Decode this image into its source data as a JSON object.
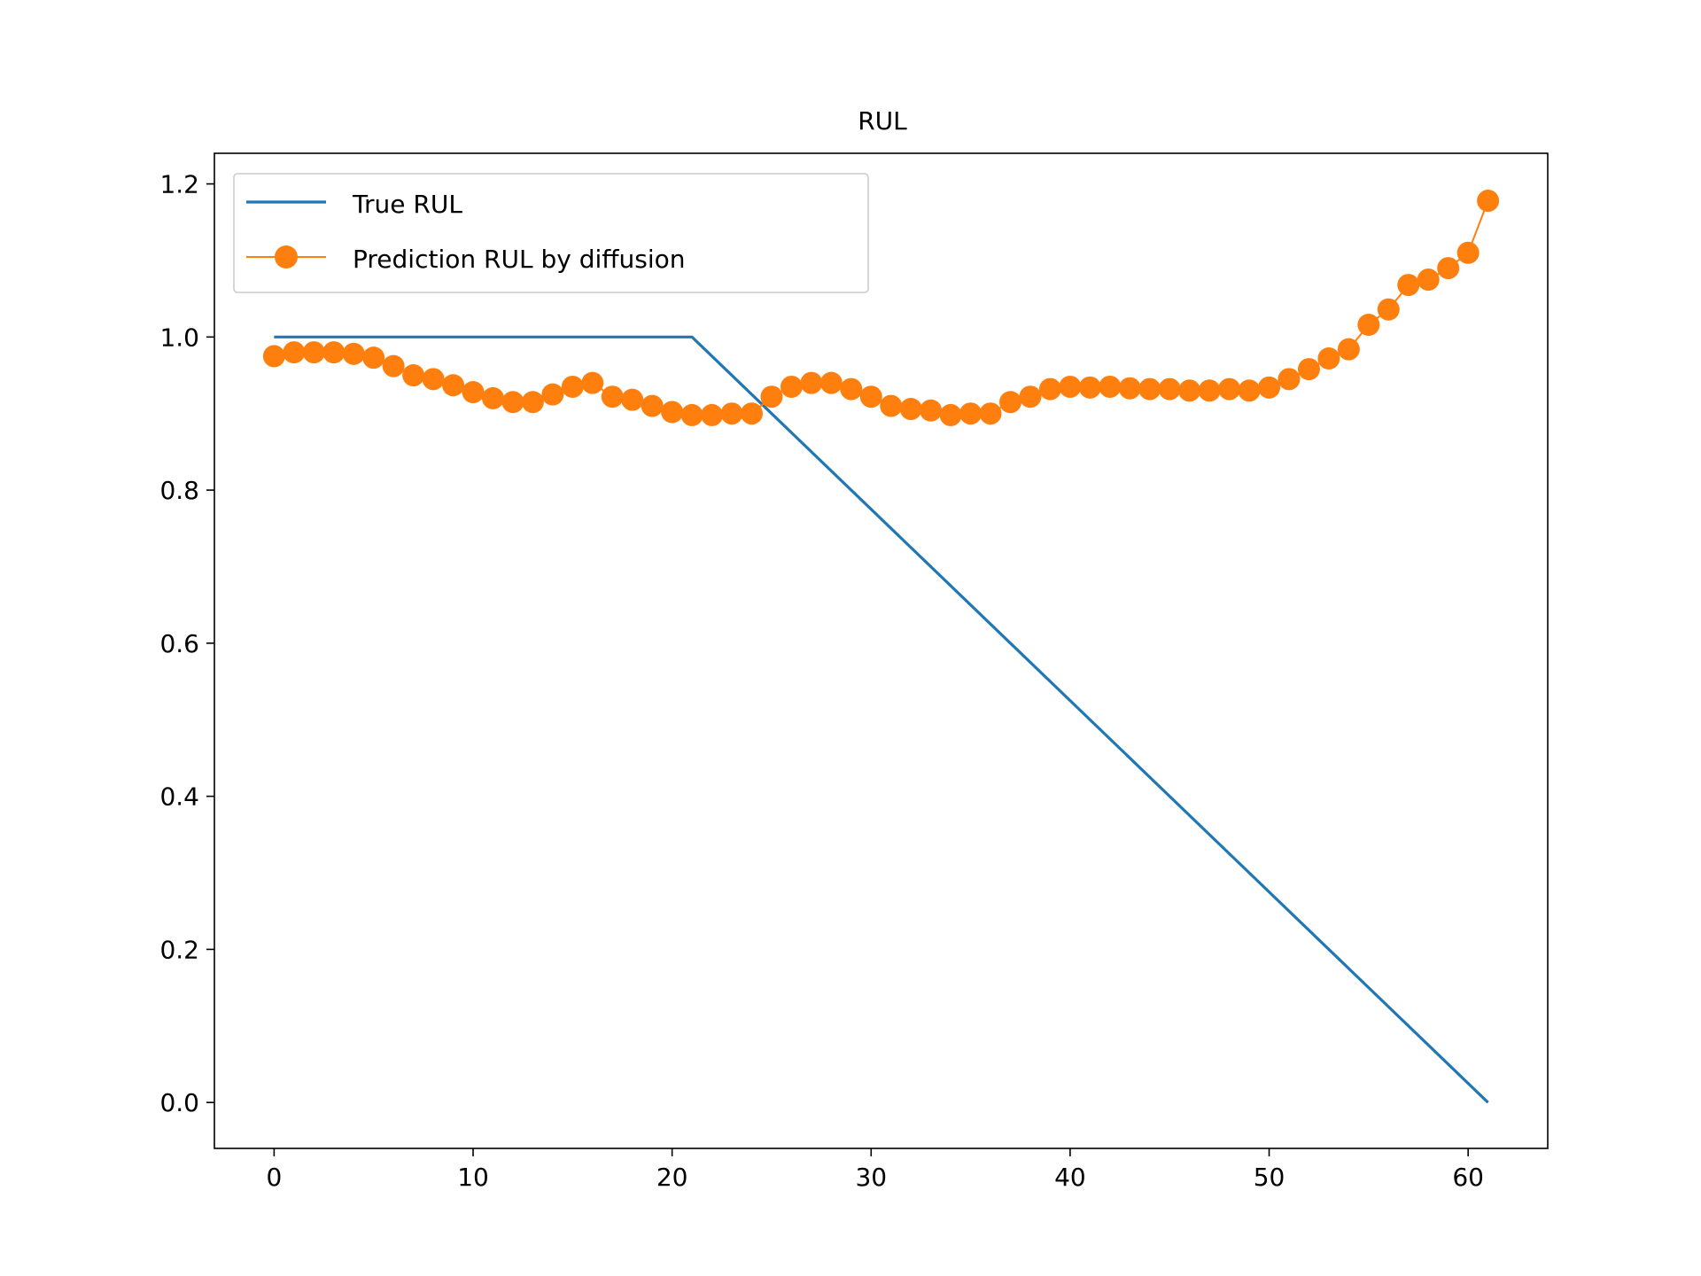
{
  "chart_data": {
    "type": "line",
    "title": "RUL",
    "xlabel": "",
    "ylabel": "",
    "xlim": [
      -3,
      64
    ],
    "ylim": [
      -0.06,
      1.24
    ],
    "xticks": [
      0,
      10,
      20,
      30,
      40,
      50,
      60
    ],
    "xtick_labels": [
      "0",
      "10",
      "20",
      "30",
      "40",
      "50",
      "60"
    ],
    "yticks": [
      0.0,
      0.2,
      0.4,
      0.6,
      0.8,
      1.0,
      1.2
    ],
    "ytick_labels": [
      "0.0",
      "0.2",
      "0.4",
      "0.6",
      "0.8",
      "1.0",
      "1.2"
    ],
    "grid": false,
    "legend_position": "upper-left",
    "series": [
      {
        "name": "True RUL",
        "color": "#1f77b4",
        "marker": "none",
        "x": [
          0,
          21,
          61
        ],
        "y": [
          1.0,
          1.0,
          0.0
        ]
      },
      {
        "name": "Prediction RUL by diffusion",
        "color": "#ff7f0e",
        "marker": "circle",
        "x": [
          0,
          1,
          2,
          3,
          4,
          5,
          6,
          7,
          8,
          9,
          10,
          11,
          12,
          13,
          14,
          15,
          16,
          17,
          18,
          19,
          20,
          21,
          22,
          23,
          24,
          25,
          26,
          27,
          28,
          29,
          30,
          31,
          32,
          33,
          34,
          35,
          36,
          37,
          38,
          39,
          40,
          41,
          42,
          43,
          44,
          45,
          46,
          47,
          48,
          49,
          50,
          51,
          52,
          53,
          54,
          55,
          56,
          57,
          58,
          59,
          60,
          61
        ],
        "y": [
          0.975,
          0.98,
          0.98,
          0.98,
          0.978,
          0.973,
          0.962,
          0.95,
          0.945,
          0.937,
          0.928,
          0.92,
          0.915,
          0.915,
          0.925,
          0.935,
          0.94,
          0.922,
          0.918,
          0.91,
          0.902,
          0.898,
          0.898,
          0.9,
          0.9,
          0.922,
          0.935,
          0.94,
          0.94,
          0.932,
          0.922,
          0.91,
          0.906,
          0.904,
          0.898,
          0.9,
          0.9,
          0.915,
          0.922,
          0.932,
          0.935,
          0.934,
          0.935,
          0.933,
          0.932,
          0.932,
          0.93,
          0.93,
          0.932,
          0.93,
          0.934,
          0.945,
          0.958,
          0.972,
          0.984,
          1.016,
          1.036,
          1.068,
          1.075,
          1.09,
          1.11,
          1.178
        ]
      }
    ]
  }
}
